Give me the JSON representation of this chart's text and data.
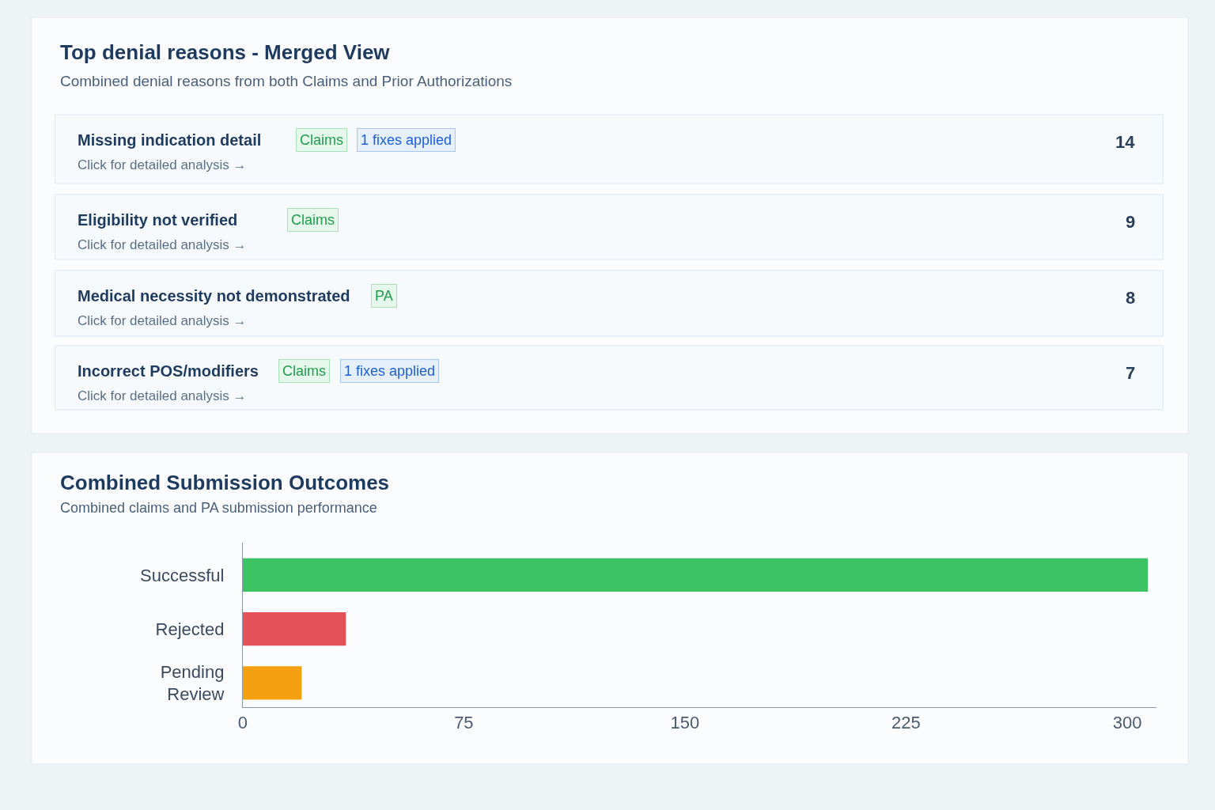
{
  "chart_data": [
    {
      "type": "other",
      "title": "Top denial reasons - Merged View",
      "subtitle": "Combined denial reasons from both Claims and Prior Authorizations",
      "categories": [
        "Missing indication detail",
        "Eligibility not verified",
        "Medical necessity not demonstrated",
        "Incorrect POS/modifiers"
      ],
      "values": [
        14,
        9,
        8,
        7
      ],
      "data_labels": true,
      "annotations": [
        {
          "text": "Claims",
          "y": "Missing indication detail"
        },
        {
          "text": "1 fixes applied",
          "y": "Missing indication detail"
        },
        {
          "text": "Click for detailed analysis →",
          "y": "Missing indication detail"
        },
        {
          "text": "Claims",
          "y": "Eligibility not verified"
        },
        {
          "text": "Click for detailed analysis →",
          "y": "Eligibility not verified"
        },
        {
          "text": "PA",
          "y": "Medical necessity not demonstrated"
        },
        {
          "text": "Click for detailed analysis →",
          "y": "Medical necessity not demonstrated"
        },
        {
          "text": "Claims",
          "y": "Incorrect POS/modifiers"
        },
        {
          "text": "1 fixes applied",
          "y": "Incorrect POS/modifiers"
        },
        {
          "text": "Click for detailed analysis →",
          "y": "Incorrect POS/modifiers"
        }
      ]
    },
    {
      "type": "bar",
      "orientation": "horizontal",
      "title": "Combined Submission Outcomes",
      "subtitle": "Combined claims and PA submission performance",
      "categories": [
        "Successful",
        "Rejected",
        "Pending Review"
      ],
      "values": [
        307,
        35,
        20
      ],
      "colors": [
        "#3cc464",
        "#e5525a",
        "#f5a010"
      ],
      "xlim": [
        0,
        310
      ],
      "xticks": [
        0,
        75,
        150,
        225,
        300
      ]
    }
  ]
}
